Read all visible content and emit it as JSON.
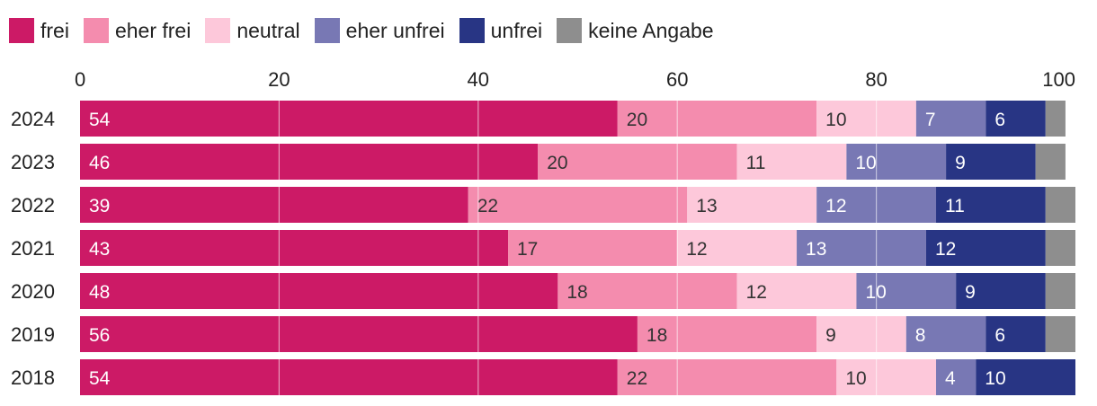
{
  "chart_data": {
    "type": "bar",
    "orientation": "horizontal-stacked",
    "categories": [
      "2024",
      "2023",
      "2022",
      "2021",
      "2020",
      "2019",
      "2018"
    ],
    "xlim": [
      0,
      100
    ],
    "xticks": [
      "0",
      "20",
      "40",
      "60",
      "80",
      "100"
    ],
    "legend_position": "top-left",
    "series": [
      {
        "name": "frei",
        "color": "#cc1a66",
        "label_color": "#ffffff",
        "values": [
          54,
          46,
          39,
          43,
          48,
          56,
          54
        ]
      },
      {
        "name": "eher frei",
        "color": "#f48cae",
        "label_color": "#333333",
        "values": [
          20,
          20,
          22,
          17,
          18,
          18,
          22
        ]
      },
      {
        "name": "neutral",
        "color": "#fdc8da",
        "label_color": "#333333",
        "values": [
          10,
          11,
          13,
          12,
          12,
          9,
          10
        ]
      },
      {
        "name": "eher unfrei",
        "color": "#7878b4",
        "label_color": "#ffffff",
        "values": [
          7,
          10,
          12,
          13,
          10,
          8,
          4
        ]
      },
      {
        "name": "unfrei",
        "color": "#283584",
        "label_color": "#ffffff",
        "values": [
          6,
          9,
          11,
          12,
          9,
          6,
          10
        ]
      },
      {
        "name": "keine Angabe",
        "color": "#8e8e8e",
        "label_color": "#ffffff",
        "values": [
          2,
          3,
          3,
          3,
          3,
          3,
          0
        ]
      }
    ]
  }
}
